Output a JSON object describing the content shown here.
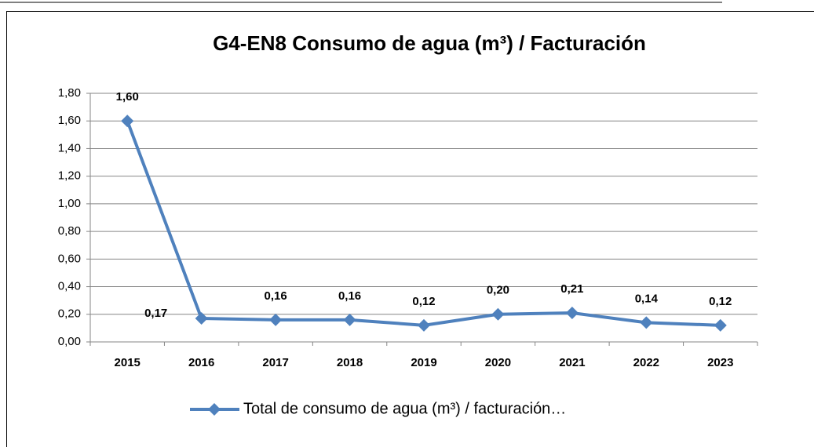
{
  "chart_data": {
    "type": "line",
    "title": "G4-EN8 Consumo de agua (m³) / Facturación",
    "categories": [
      "2015",
      "2016",
      "2017",
      "2018",
      "2019",
      "2020",
      "2021",
      "2022",
      "2023"
    ],
    "series": [
      {
        "name": "Total de consumo de agua (m³) / facturación…",
        "color": "#4f81bd",
        "values": [
          1.6,
          0.17,
          0.16,
          0.16,
          0.12,
          0.2,
          0.21,
          0.14,
          0.12
        ],
        "value_labels": [
          "1,60",
          "0,17",
          "0,16",
          "0,16",
          "0,12",
          "0,20",
          "0,21",
          "0,14",
          "0,12"
        ]
      }
    ],
    "ylim": [
      0,
      1.8
    ],
    "yticks": [
      {
        "value": 0,
        "label": "0,00"
      },
      {
        "value": 0.2,
        "label": "0,20"
      },
      {
        "value": 0.4,
        "label": "0,40"
      },
      {
        "value": 0.6,
        "label": "0,60"
      },
      {
        "value": 0.8,
        "label": "0,80"
      },
      {
        "value": 1.0,
        "label": "1,00"
      },
      {
        "value": 1.2,
        "label": "1,20"
      },
      {
        "value": 1.4,
        "label": "1,40"
      },
      {
        "value": 1.6,
        "label": "1,60"
      },
      {
        "value": 1.8,
        "label": "1,80"
      }
    ],
    "grid": true,
    "legend": "bottom"
  }
}
